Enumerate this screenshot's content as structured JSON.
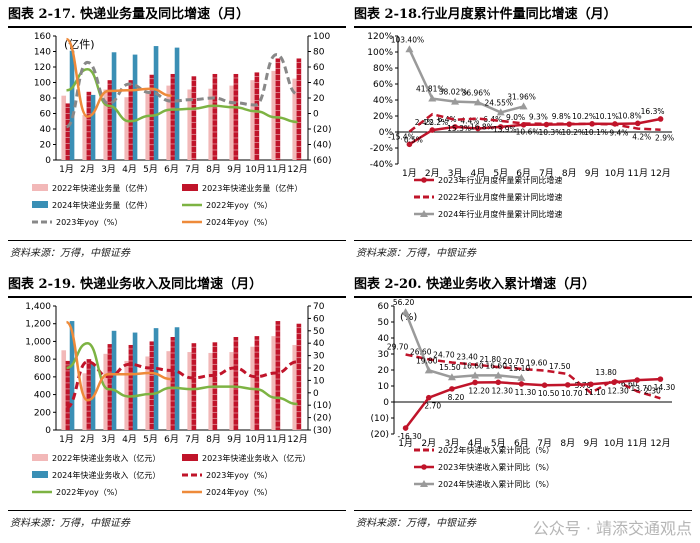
{
  "source_text": "资料来源：万得，中银证券",
  "watermark": "公众号 · 靖添交通观点",
  "chart_data": [
    {
      "type": "bar",
      "title": "图表 2-17. 快递业务量及同比增速（月）",
      "unit_label": "(亿件)",
      "categories": [
        "1月",
        "2月",
        "3月",
        "4月",
        "5月",
        "6月",
        "7月",
        "8月",
        "9月",
        "10月",
        "11月",
        "12月"
      ],
      "ylim": [
        0,
        160
      ],
      "yticks": [
        0,
        20,
        40,
        60,
        80,
        100,
        120,
        140,
        160
      ],
      "y2lim": [
        -60,
        100
      ],
      "y2ticks": [
        -60,
        -40,
        -20,
        0,
        20,
        40,
        60,
        80,
        100
      ],
      "y2tick_labels": [
        "(60)",
        "(40)",
        "(20)",
        "0",
        "20",
        "40",
        "60",
        "80",
        "100"
      ],
      "series": [
        {
          "name": "2022年快递业务量（亿件）",
          "kind": "bar",
          "color": "#f2b8b8",
          "values": [
            83,
            58,
            91,
            81,
            89,
            96,
            91,
            92,
            96,
            103,
            115,
            105
          ]
        },
        {
          "name": "2023年快递业务量（亿件）",
          "kind": "bar",
          "color": "#c0142a",
          "values": [
            73,
            88,
            103,
            103,
            110,
            111,
            108,
            111,
            111,
            113,
            131,
            131
          ]
        },
        {
          "name": "2024年快递业务量（亿件）",
          "kind": "bar",
          "color": "#3a8fb5",
          "values": [
            141,
            84,
            139,
            136,
            147,
            145,
            null,
            null,
            null,
            null,
            null,
            null
          ]
        },
        {
          "name": "2022年yoy（%）",
          "kind": "line",
          "color": "#7db343",
          "axis": "y2",
          "values": [
            30,
            57,
            10,
            -10,
            -3,
            5,
            6,
            10,
            8,
            3,
            -5,
            -11
          ]
        },
        {
          "name": "2023年yoy（%）",
          "kind": "line",
          "color": "#888888",
          "axis": "y2",
          "dash": true,
          "values": [
            -17,
            66,
            13,
            38,
            27,
            16,
            18,
            20,
            14,
            11,
            76,
            25
          ]
        },
        {
          "name": "2024年yoy（%）",
          "kind": "line",
          "color": "#ee8a3a",
          "axis": "y2",
          "values": [
            96,
            -4,
            29,
            30,
            32,
            23,
            null,
            null,
            null,
            null,
            null,
            null
          ]
        }
      ]
    },
    {
      "type": "line",
      "title": "图表 2-18.行业月度累计件量同比增速（月）",
      "categories": [
        "1月",
        "2月",
        "3月",
        "4月",
        "5月",
        "6月",
        "7月",
        "8月",
        "9月",
        "10月",
        "11月",
        "12月"
      ],
      "ylim": [
        -40,
        120
      ],
      "yticks": [
        -40,
        -20,
        0,
        20,
        40,
        60,
        80,
        100,
        120
      ],
      "ytick_labels": [
        "-40%",
        "-20%",
        "0%",
        "20%",
        "40%",
        "60%",
        "80%",
        "100%",
        "120%"
      ],
      "series": [
        {
          "name": "2023年行业月度件量累计同比增速",
          "color": "#c0142a",
          "marker": "circle",
          "values": [
            -15.4,
            2.4,
            6.4,
            4.4,
            6.4,
            9.0,
            9.3,
            9.8,
            10.2,
            10.1,
            10.8,
            16.3
          ],
          "labels": [
            "-15.4%",
            "2.4%",
            "6.4%",
            "4.4%",
            "6.4%",
            "9.0%",
            "9.3%",
            "9.8%",
            "10.2%",
            "10.1%",
            "10.8%",
            "16.3%"
          ]
        },
        {
          "name": "2022年行业月度件量累计同比增速",
          "color": "#c0142a",
          "dash": true,
          "values": [
            0.5,
            22.2,
            15.3,
            16.8,
            13.9,
            10.6,
            10.3,
            10.2,
            10.1,
            9.4,
            4.2,
            2.9
          ],
          "labels": [
            "0.5%",
            "22.2%",
            "15.3%",
            "16.8%",
            "13.9%",
            "10.6%",
            "10.3%",
            "10.2%",
            "10.1%",
            "9.4%",
            "4.2%",
            "2.9%"
          ]
        },
        {
          "name": "2024年行业月度件量累计同比增速",
          "color": "#9a9a9a",
          "marker": "triangle",
          "values": [
            103.4,
            41.81,
            38.02,
            36.96,
            24.55,
            31.96,
            null,
            null,
            null,
            null,
            null,
            null
          ],
          "labels": [
            "103.40%",
            "41.81%",
            "38.02%",
            "36.96%",
            "24.55%",
            "31.96%"
          ]
        }
      ]
    },
    {
      "type": "bar",
      "title": "图表 2-19. 快递业务收入及同比增速（月）",
      "categories": [
        "1月",
        "2月",
        "3月",
        "4月",
        "5月",
        "6月",
        "7月",
        "8月",
        "9月",
        "10月",
        "11月",
        "12月"
      ],
      "ylim": [
        0,
        1400
      ],
      "yticks": [
        0,
        200,
        400,
        600,
        800,
        1000,
        1200,
        1400
      ],
      "ytick_labels": [
        "0",
        "200",
        "400",
        "600",
        "800",
        "1,000",
        "1,200",
        "1,400"
      ],
      "y2lim": [
        -30,
        70
      ],
      "y2ticks": [
        -30,
        -20,
        -10,
        0,
        10,
        20,
        30,
        40,
        50,
        60,
        70
      ],
      "y2tick_labels": [
        "(30)",
        "(20)",
        "(10)",
        "0",
        "10",
        "20",
        "30",
        "40",
        "50",
        "60",
        "70"
      ],
      "series": [
        {
          "name": "2022年快递业务收入（亿元）",
          "kind": "bar",
          "color": "#f2b8b8",
          "values": [
            900,
            640,
            860,
            780,
            830,
            890,
            880,
            870,
            880,
            940,
            1060,
            960
          ]
        },
        {
          "name": "2023年快递业务收入（亿元）",
          "kind": "bar",
          "color": "#c0142a",
          "values": [
            780,
            800,
            970,
            960,
            1000,
            1050,
            980,
            990,
            1050,
            1060,
            1230,
            1200
          ]
        },
        {
          "name": "2024年快递业务收入（亿元）",
          "kind": "bar",
          "color": "#3a8fb5",
          "values": [
            1230,
            750,
            1120,
            1100,
            1150,
            1160,
            null,
            null,
            null,
            null,
            null,
            null
          ]
        },
        {
          "name": "2023年yoy（%）",
          "kind": "line",
          "color": "#c0142a",
          "dash": true,
          "axis": "y2",
          "values": [
            -12,
            25,
            13,
            23,
            20,
            18,
            12,
            14,
            20,
            13,
            16,
            25
          ]
        },
        {
          "name": "2022年yoy（%）",
          "kind": "line",
          "color": "#7db343",
          "axis": "y2",
          "values": [
            20,
            40,
            3,
            -3,
            -1,
            4,
            3,
            5,
            5,
            3,
            -4,
            -9
          ]
        },
        {
          "name": "2024年yoy（%）",
          "kind": "line",
          "color": "#ee8a3a",
          "axis": "y2",
          "values": [
            57,
            -6,
            15,
            15,
            16,
            11,
            null,
            null,
            null,
            null,
            null,
            null
          ]
        }
      ]
    },
    {
      "type": "line",
      "title": "图表 2-20. 快递业务收入累计增速（月）",
      "unit_label": "(%)",
      "categories": [
        "1月",
        "2月",
        "3月",
        "4月",
        "5月",
        "6月",
        "7月",
        "8月",
        "9月",
        "10月",
        "11月",
        "12月"
      ],
      "ylim": [
        -20,
        60
      ],
      "yticks": [
        -20,
        -10,
        0,
        10,
        20,
        30,
        40,
        50,
        60
      ],
      "ytick_labels": [
        "(20)",
        "(10)",
        "0",
        "10",
        "20",
        "30",
        "40",
        "50",
        "60"
      ],
      "series": [
        {
          "name": "2022年快递收入累计同比（%）",
          "color": "#c0142a",
          "dash": true,
          "values": [
            29.7,
            26.6,
            24.7,
            23.4,
            21.8,
            20.7,
            19.6,
            17.5,
            5.7,
            13.8,
            6.6,
            2.3
          ],
          "labels": [
            "29.70",
            "26.60",
            "24.70",
            "23.40",
            "21.80",
            "20.70",
            "19.60",
            "17.50",
            "5.70",
            "13.80",
            "6.60",
            "2.30"
          ]
        },
        {
          "name": "2023年快递收入累计同比（%）",
          "color": "#c0142a",
          "marker": "circle",
          "values": [
            -16.3,
            2.7,
            8.2,
            12.2,
            12.3,
            11.3,
            10.5,
            10.7,
            11.1,
            12.3,
            13.7,
            14.3
          ],
          "labels": [
            "-16.30",
            "2.70",
            "8.20",
            "12.20",
            "12.30",
            "11.30",
            "10.50",
            "10.70",
            "11.10",
            "12.30",
            "13.70",
            "14.30"
          ]
        },
        {
          "name": "2024年快递收入累计同比（%）",
          "color": "#9a9a9a",
          "marker": "triangle",
          "values": [
            56.2,
            19.8,
            15.5,
            16.6,
            16.6,
            15.1,
            null,
            null,
            null,
            null,
            null,
            null
          ],
          "labels": [
            "56.20",
            "19.80",
            "15.50",
            "16.60",
            "16.60",
            "15.10"
          ]
        }
      ]
    }
  ]
}
